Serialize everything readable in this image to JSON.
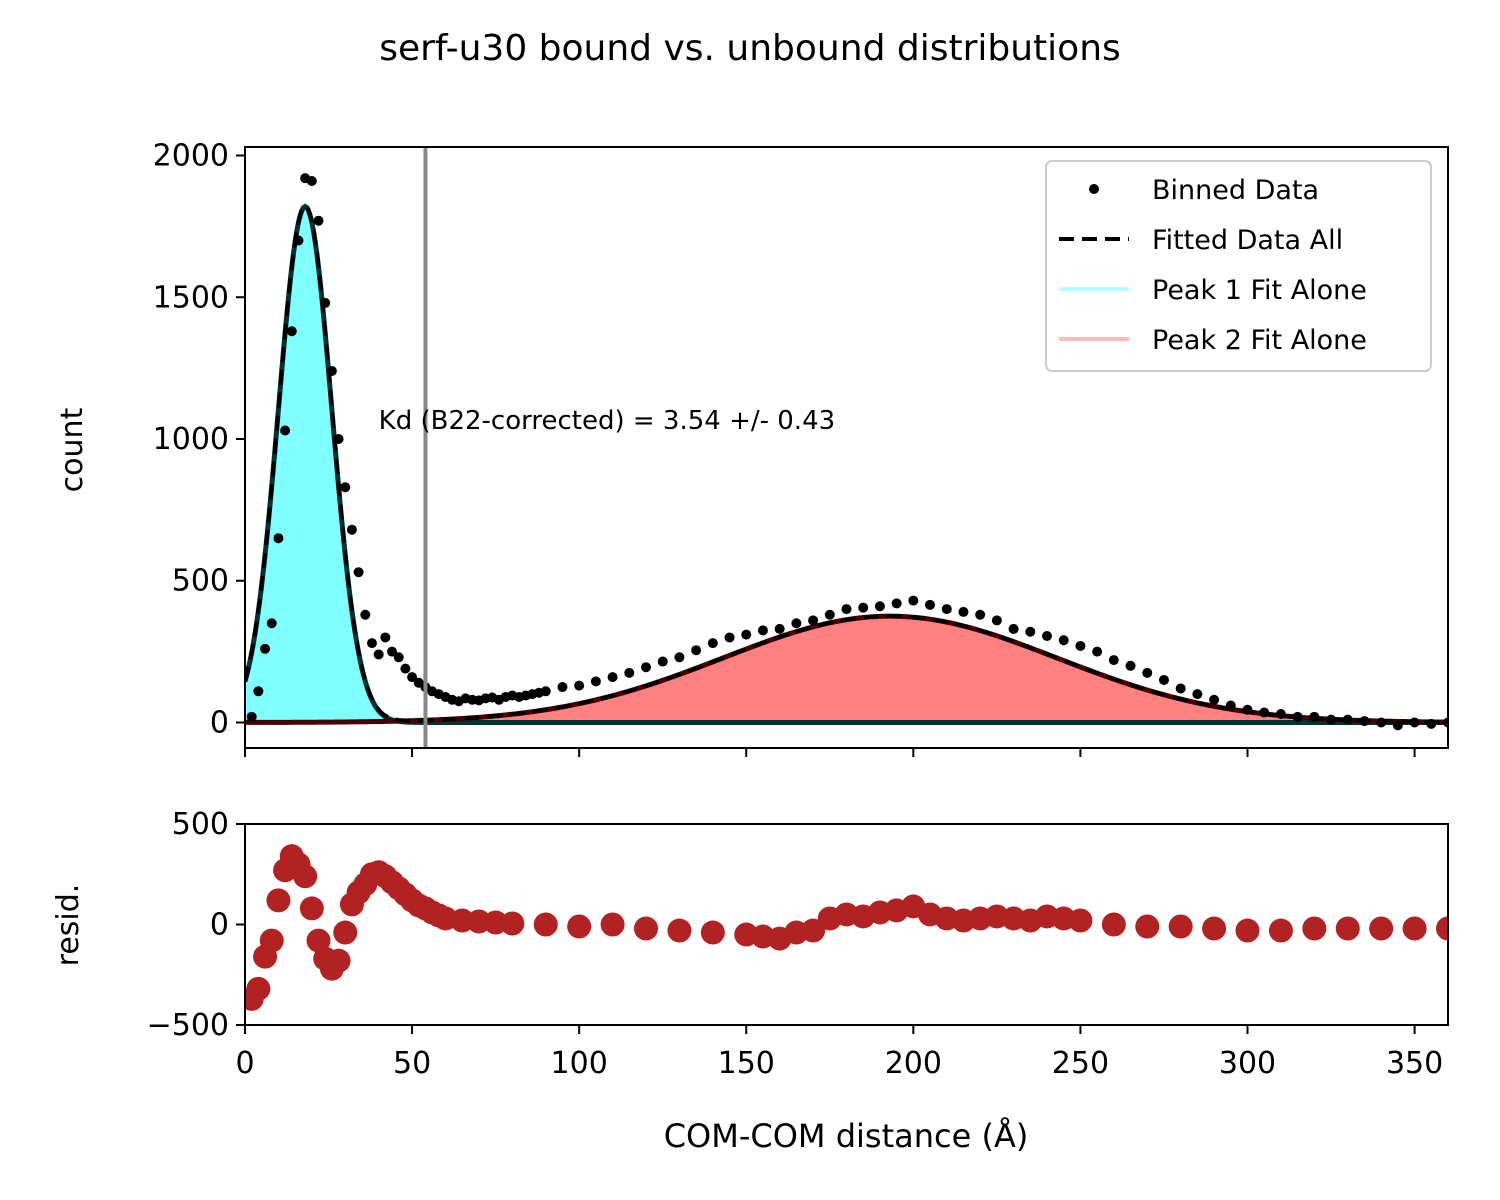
{
  "title": "serf-u30 bound vs. unbound distributions",
  "colors": {
    "peak1_fill": "#80ffff",
    "peak1_line": "#b3ffff",
    "peak2_fill": "#ff8080",
    "peak2_line": "#ffbbbb",
    "fit_line": "#000000",
    "data_points": "#000000",
    "residuals": "#b22222",
    "cutoff_line": "#888888",
    "overlay_peak1": "#003333",
    "overlay_peak2": "#4a0000"
  },
  "chart_data": [
    {
      "type": "scatter",
      "panel": "main",
      "ylabel": "count",
      "xlim": [
        0,
        360
      ],
      "ylim": [
        -90,
        2030
      ],
      "x_ticks": [
        0,
        50,
        100,
        150,
        200,
        250,
        300,
        350
      ],
      "y_ticks": [
        0,
        500,
        1000,
        1500,
        2000
      ],
      "y_tick_labels": [
        "0",
        "500",
        "1000",
        "1500",
        "2000"
      ],
      "legend": {
        "position": "top-right",
        "entries": [
          "Binned Data",
          "Fitted Data All",
          "Peak 1 Fit Alone",
          "Peak 2 Fit Alone"
        ]
      },
      "annotation": "Kd (B22-corrected) = 3.54 +/- 0.43",
      "annotation_at": [
        40,
        1000
      ],
      "cutoff_x": 54,
      "fit_model": {
        "peak1": {
          "amplitude": 1820,
          "center": 18,
          "sigma": 8
        },
        "peak2": {
          "amplitude": 375,
          "center": 193,
          "sigma": 50
        }
      },
      "binned_data": {
        "x": [
          2,
          4,
          6,
          8,
          10,
          12,
          14,
          16,
          18,
          20,
          22,
          24,
          26,
          28,
          30,
          32,
          34,
          36,
          38,
          40,
          42,
          44,
          46,
          48,
          50,
          52,
          54,
          56,
          58,
          60,
          62,
          64,
          66,
          68,
          70,
          72,
          74,
          76,
          78,
          80,
          82,
          84,
          86,
          88,
          90,
          95,
          100,
          105,
          110,
          115,
          120,
          125,
          130,
          135,
          140,
          145,
          150,
          155,
          160,
          165,
          170,
          175,
          180,
          185,
          190,
          195,
          200,
          205,
          210,
          215,
          220,
          225,
          230,
          235,
          240,
          245,
          250,
          255,
          260,
          265,
          270,
          275,
          280,
          285,
          290,
          295,
          300,
          305,
          310,
          315,
          320,
          325,
          330,
          335,
          340,
          345,
          350,
          355,
          360
        ],
        "y": [
          20,
          110,
          260,
          350,
          650,
          1030,
          1380,
          1700,
          1920,
          1910,
          1770,
          1480,
          1240,
          1000,
          830,
          680,
          530,
          380,
          280,
          240,
          300,
          250,
          230,
          190,
          160,
          140,
          125,
          110,
          100,
          90,
          80,
          75,
          85,
          80,
          78,
          85,
          88,
          80,
          90,
          95,
          90,
          95,
          100,
          105,
          110,
          125,
          130,
          145,
          160,
          175,
          195,
          215,
          230,
          255,
          280,
          300,
          310,
          325,
          330,
          350,
          360,
          380,
          400,
          405,
          410,
          420,
          430,
          415,
          400,
          390,
          380,
          360,
          330,
          320,
          305,
          290,
          270,
          250,
          220,
          200,
          175,
          150,
          120,
          100,
          80,
          60,
          45,
          35,
          30,
          20,
          20,
          10,
          10,
          5,
          0,
          -10,
          0,
          -5,
          0
        ]
      }
    },
    {
      "type": "scatter",
      "panel": "residuals",
      "ylabel": "resid.",
      "xlabel": "COM-COM distance (Å)",
      "xlim": [
        0,
        360
      ],
      "ylim": [
        -500,
        500
      ],
      "x_ticks": [
        0,
        50,
        100,
        150,
        200,
        250,
        300,
        350
      ],
      "x_tick_labels": [
        "0",
        "50",
        "100",
        "150",
        "200",
        "250",
        "300",
        "350"
      ],
      "y_ticks": [
        -500,
        0,
        500
      ],
      "y_tick_labels": [
        "−500",
        "0",
        "500"
      ],
      "x": [
        2,
        4,
        6,
        8,
        10,
        12,
        14,
        16,
        18,
        20,
        22,
        24,
        26,
        28,
        30,
        32,
        34,
        36,
        38,
        40,
        42,
        44,
        46,
        48,
        50,
        52,
        54,
        56,
        58,
        60,
        65,
        70,
        75,
        80,
        90,
        100,
        110,
        120,
        130,
        140,
        150,
        155,
        160,
        165,
        170,
        175,
        180,
        185,
        190,
        195,
        200,
        205,
        210,
        215,
        220,
        225,
        230,
        235,
        240,
        245,
        250,
        260,
        270,
        280,
        290,
        300,
        310,
        320,
        330,
        340,
        350,
        360
      ],
      "y": [
        -370,
        -320,
        -160,
        -80,
        120,
        270,
        340,
        300,
        240,
        80,
        -80,
        -170,
        -220,
        -180,
        -40,
        100,
        160,
        200,
        250,
        260,
        240,
        210,
        180,
        150,
        120,
        95,
        80,
        60,
        45,
        30,
        20,
        15,
        10,
        5,
        0,
        -10,
        0,
        -20,
        -30,
        -40,
        -50,
        -60,
        -70,
        -40,
        -30,
        30,
        50,
        40,
        60,
        70,
        90,
        50,
        30,
        20,
        30,
        40,
        30,
        20,
        40,
        30,
        20,
        0,
        -10,
        -10,
        -20,
        -30,
        -30,
        -20,
        -20,
        -20,
        -20,
        -20
      ]
    }
  ]
}
